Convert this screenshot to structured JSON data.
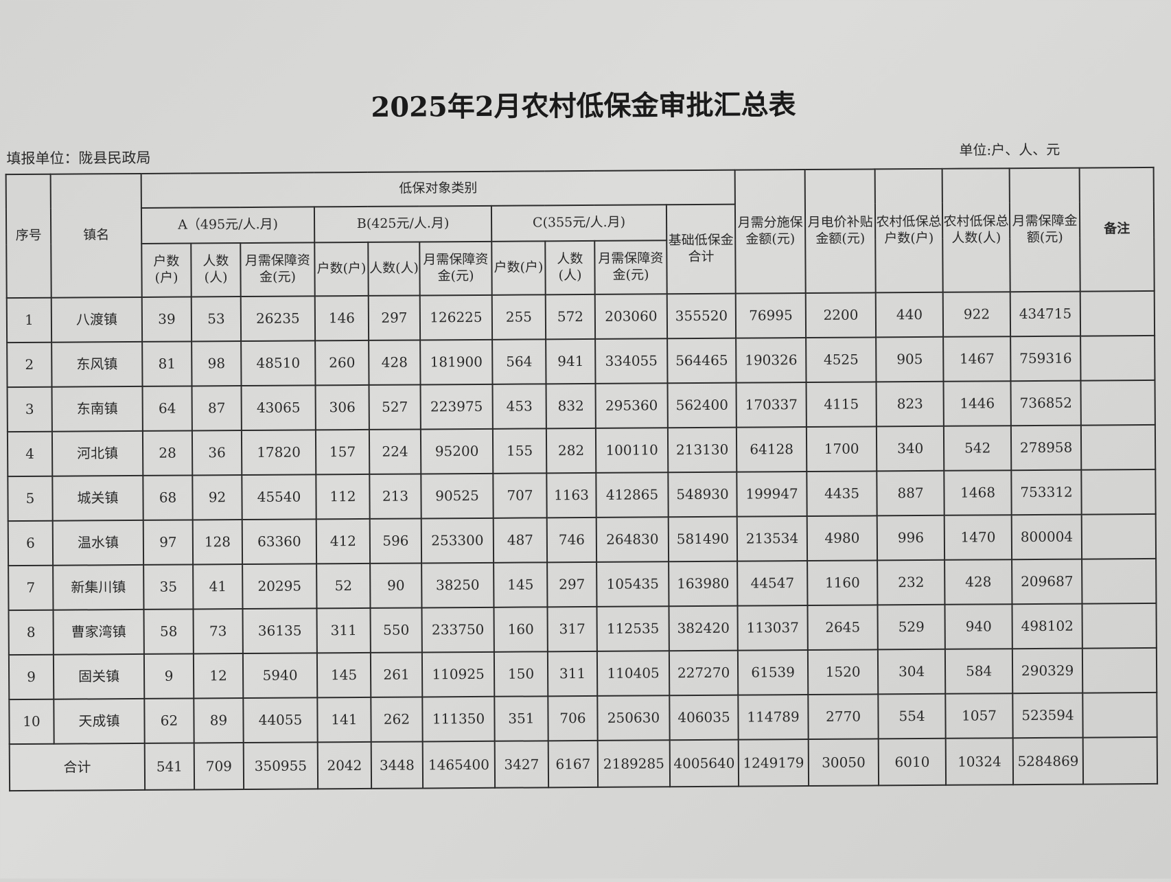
{
  "title": "2025年2月农村低保金审批汇总表",
  "reporting_unit": "填报单位：陇县民政局",
  "units": "单位:户、人、元",
  "headers": {
    "seq": "序号",
    "town": "镇名",
    "category_group": "低保对象类别",
    "cat_a": "A（495元/人.月)",
    "cat_b": "B(425元/人.月)",
    "cat_c": "C(355元/人.月)",
    "households": "户数(户)",
    "persons": "人数(人)",
    "monthly_fund": "月需保障资金(元)",
    "base_total": "基础低保金合计",
    "classified_amount": "月需分施保金额(元)",
    "electricity_subsidy": "月电价补贴金额(元)",
    "total_households": "农村低保总户数(户)",
    "total_persons": "农村低保总人数(人)",
    "monthly_guarantee": "月需保障金额(元)",
    "remarks": "备注"
  },
  "rows": [
    [
      "1",
      "八渡镇",
      "39",
      "53",
      "26235",
      "146",
      "297",
      "126225",
      "255",
      "572",
      "203060",
      "355520",
      "76995",
      "2200",
      "440",
      "922",
      "434715",
      ""
    ],
    [
      "2",
      "东风镇",
      "81",
      "98",
      "48510",
      "260",
      "428",
      "181900",
      "564",
      "941",
      "334055",
      "564465",
      "190326",
      "4525",
      "905",
      "1467",
      "759316",
      ""
    ],
    [
      "3",
      "东南镇",
      "64",
      "87",
      "43065",
      "306",
      "527",
      "223975",
      "453",
      "832",
      "295360",
      "562400",
      "170337",
      "4115",
      "823",
      "1446",
      "736852",
      ""
    ],
    [
      "4",
      "河北镇",
      "28",
      "36",
      "17820",
      "157",
      "224",
      "95200",
      "155",
      "282",
      "100110",
      "213130",
      "64128",
      "1700",
      "340",
      "542",
      "278958",
      ""
    ],
    [
      "5",
      "城关镇",
      "68",
      "92",
      "45540",
      "112",
      "213",
      "90525",
      "707",
      "1163",
      "412865",
      "548930",
      "199947",
      "4435",
      "887",
      "1468",
      "753312",
      ""
    ],
    [
      "6",
      "温水镇",
      "97",
      "128",
      "63360",
      "412",
      "596",
      "253300",
      "487",
      "746",
      "264830",
      "581490",
      "213534",
      "4980",
      "996",
      "1470",
      "800004",
      ""
    ],
    [
      "7",
      "新集川镇",
      "35",
      "41",
      "20295",
      "52",
      "90",
      "38250",
      "145",
      "297",
      "105435",
      "163980",
      "44547",
      "1160",
      "232",
      "428",
      "209687",
      ""
    ],
    [
      "8",
      "曹家湾镇",
      "58",
      "73",
      "36135",
      "311",
      "550",
      "233750",
      "160",
      "317",
      "112535",
      "382420",
      "113037",
      "2645",
      "529",
      "940",
      "498102",
      ""
    ],
    [
      "9",
      "固关镇",
      "9",
      "12",
      "5940",
      "145",
      "261",
      "110925",
      "150",
      "311",
      "110405",
      "227270",
      "61539",
      "1520",
      "304",
      "584",
      "290329",
      ""
    ],
    [
      "10",
      "天成镇",
      "62",
      "89",
      "44055",
      "141",
      "262",
      "111350",
      "351",
      "706",
      "250630",
      "406035",
      "114789",
      "2770",
      "554",
      "1057",
      "523594",
      ""
    ]
  ],
  "total": {
    "label": "合计",
    "values": [
      "541",
      "709",
      "350955",
      "2042",
      "3448",
      "1465400",
      "3427",
      "6167",
      "2189285",
      "4005640",
      "1249179",
      "30050",
      "6010",
      "10324",
      "5284869",
      ""
    ]
  }
}
